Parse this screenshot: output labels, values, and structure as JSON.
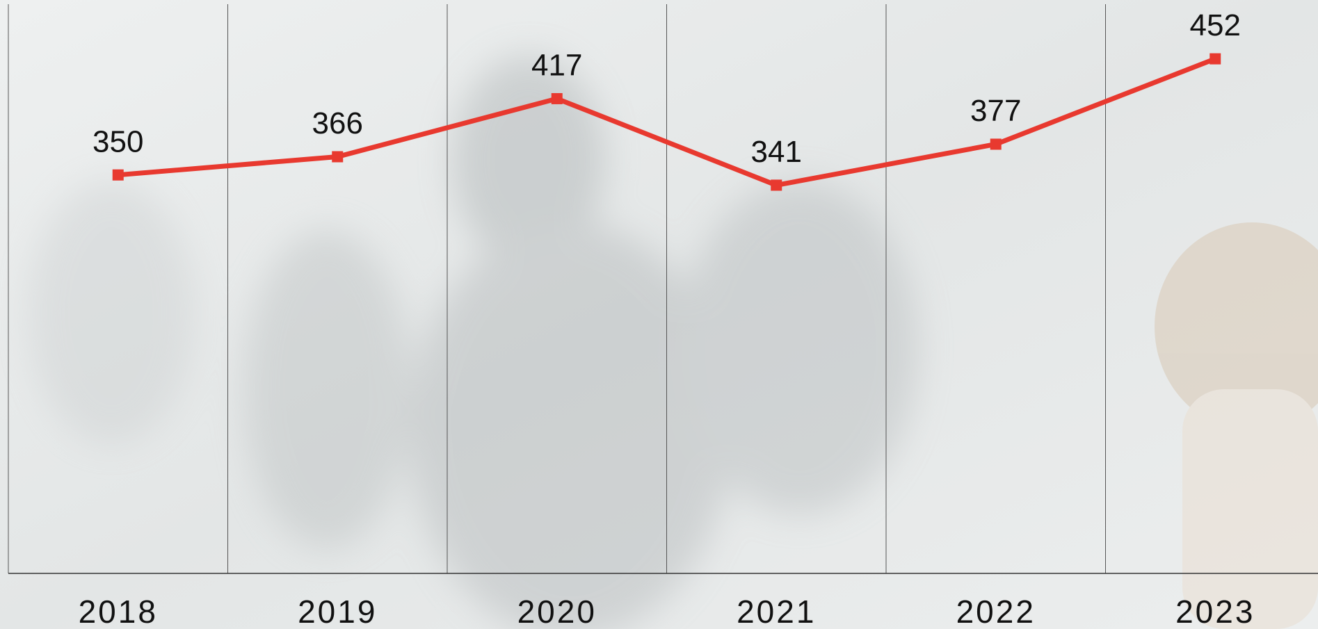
{
  "chart_data": {
    "type": "line",
    "categories": [
      "2018",
      "2019",
      "2020",
      "2021",
      "2022",
      "2023"
    ],
    "series": [
      {
        "color": "#e8392f",
        "values": [
          350,
          366,
          417,
          341,
          377,
          452
        ]
      }
    ],
    "ylim": [
      0,
      500
    ],
    "grid": true
  }
}
